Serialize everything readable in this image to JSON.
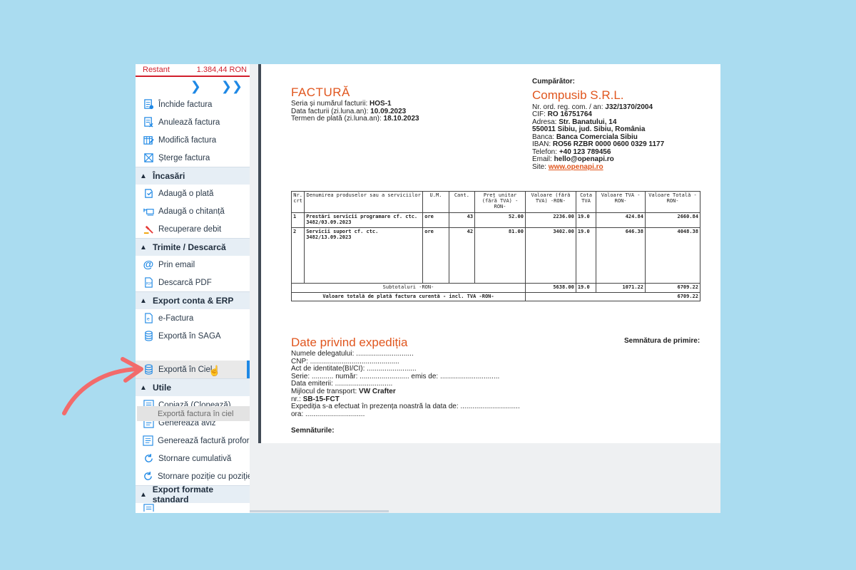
{
  "sidebar": {
    "restant_label": "Restant",
    "restant_value": "1.384,44 RON",
    "nav": {
      "next_icon": "chevron-right-icon",
      "last_icon": "double-chevron-right-icon"
    },
    "actions": [
      {
        "label": "Închide factura",
        "icon": "close-invoice-icon"
      },
      {
        "label": "Anulează factura",
        "icon": "cancel-invoice-icon"
      },
      {
        "label": "Modifică factura",
        "icon": "edit-invoice-icon"
      },
      {
        "label": "Șterge factura",
        "icon": "delete-invoice-icon"
      }
    ],
    "sections": {
      "incasari": "Încasări",
      "trimite": "Trimite / Descarcă",
      "export": "Export conta & ERP",
      "utile": "Utile",
      "standard": "Export formate standard"
    },
    "incasari_items": [
      {
        "label": "Adaugă o plată",
        "icon": "payment-icon"
      },
      {
        "label": "Adaugă o chitanță",
        "icon": "receipt-icon"
      },
      {
        "label": "Recuperare debit",
        "icon": "gavel-icon"
      }
    ],
    "trimite_items": [
      {
        "label": "Prin email",
        "icon": "at-icon"
      },
      {
        "label": "Descarcă PDF",
        "icon": "pdf-icon"
      }
    ],
    "export_items": [
      {
        "label": "e-Factura",
        "icon": "e-icon"
      },
      {
        "label": "Exportă în SAGA",
        "icon": "database-icon"
      },
      {
        "label": "Exportă în Ciel",
        "icon": "database-icon"
      }
    ],
    "tooltip": "Exportă factura în ciel",
    "utile_items": [
      {
        "label": "Copiază (Clonează)",
        "icon": "copy-icon"
      },
      {
        "label": "Generează aviz",
        "icon": "document-icon"
      },
      {
        "label": "Generează factură proformă",
        "icon": "document-icon"
      },
      {
        "label": "Stornare cumulativă",
        "icon": "refresh-icon"
      },
      {
        "label": "Stornare poziție cu poziție",
        "icon": "refresh-icon"
      }
    ]
  },
  "invoice": {
    "title": "FACTURĂ",
    "series_label": "Seria și numărul facturii:",
    "series_value": "HOS-1",
    "date_label": "Data facturii (zi.luna.an):",
    "date_value": "10.09.2023",
    "due_label": "Termen de plată (zi.luna.an):",
    "due_value": "18.10.2023"
  },
  "buyer": {
    "heading": "Cumpărător:",
    "name": "Compusib S.R.L.",
    "reg_label": "Nr. ord. reg. com. / an:",
    "reg_value": "J32/1370/2004",
    "cif_label": "CIF:",
    "cif_value": "RO 16751764",
    "address_label": "Adresa:",
    "address_line1": "Str. Banatului, 14",
    "address_line2": "550011 Sibiu, jud. Sibiu, România",
    "bank_label": "Banca:",
    "bank_value": "Banca Comerciala Sibiu",
    "iban_label": "IBAN:",
    "iban_value": "RO56 RZBR 0000 0600 0329 1177",
    "phone_label": "Telefon:",
    "phone_value": "+40 123 789456",
    "email_label": "Email:",
    "email_value": "hello@openapi.ro",
    "site_label": "Site:",
    "site_value": "www.openapi.ro"
  },
  "table": {
    "headers": {
      "nr": "Nr. crt",
      "name": "Denumirea produselor sau a serviciilor",
      "um": "U.M.",
      "qty": "Cant.",
      "price": "Preț unitar (fără TVA) -RON-",
      "value": "Valoare (fără TVA) -RON-",
      "vat_rate": "Cota TVA",
      "vat_value": "Valoare TVA -RON-",
      "total": "Valoare Totală -RON-"
    },
    "rows": [
      {
        "nr": "1",
        "name": "Prestări servicii programare cf. ctc. 3482/03.09.2023",
        "um": "ore",
        "qty": "43",
        "price": "52.00",
        "value": "2236.00",
        "vat_rate": "19.0",
        "vat_value": "424.84",
        "total": "2660.84"
      },
      {
        "nr": "2",
        "name": "Servicii suport cf. ctc. 3482/13.09.2023",
        "um": "ore",
        "qty": "42",
        "price": "81.00",
        "value": "3402.00",
        "vat_rate": "19.0",
        "vat_value": "646.38",
        "total": "4048.38"
      }
    ],
    "subtotal_label": "Subtotaluri -RON-",
    "subtotal_value": "5638.00",
    "subtotal_rate": "19.0",
    "subtotal_vat": "1071.22",
    "subtotal_total": "6709.22",
    "grand_label": "Valoare totală de plată factura curentă - incl. TVA -RON-",
    "grand_value": "6709.22"
  },
  "shipping": {
    "title": "Date privind expediția",
    "delegate": "Numele delegatului: .............................",
    "cnp": "CNP: .............................................",
    "id_doc": "Act de identitate(BI/CI): .........................",
    "series": "Serie: ........... număr: ......................... emis de: ..............................",
    "issue_date": "Data emiterii: .............................",
    "transport_label": "Mijlocul de transport:",
    "transport_value": "VW Crafter",
    "nr_label": "nr.:",
    "nr_value": "SB-15-FCT",
    "done": "Expediția s-a efectuat în prezența noastră la data de: ..............................",
    "hour": "ora: ..............................",
    "sig_receive": "Semnătura de primire:",
    "signatures": "Semnăturile:"
  }
}
